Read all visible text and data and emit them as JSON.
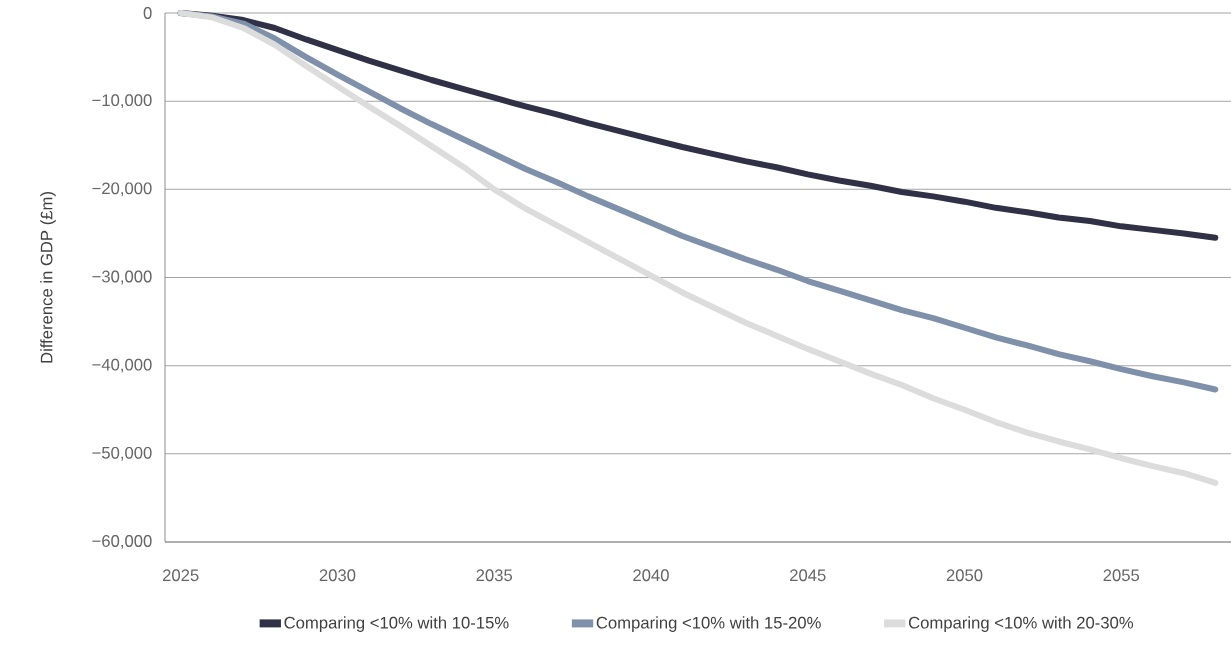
{
  "chart_data": {
    "type": "line",
    "ylabel": "Difference in GDP (£m)",
    "x": [
      2025,
      2026,
      2027,
      2028,
      2029,
      2030,
      2031,
      2032,
      2033,
      2034,
      2035,
      2036,
      2037,
      2038,
      2039,
      2040,
      2041,
      2042,
      2043,
      2044,
      2045,
      2046,
      2047,
      2048,
      2049,
      2050,
      2051,
      2052,
      2053,
      2054,
      2055,
      2056,
      2057,
      2058
    ],
    "series": [
      {
        "name": "Comparing <10% with 10-15%",
        "color": "#303047",
        "values": [
          0,
          -300,
          -800,
          -1700,
          -3000,
          -4200,
          -5400,
          -6500,
          -7600,
          -8600,
          -9600,
          -10600,
          -11500,
          -12500,
          -13400,
          -14300,
          -15200,
          -16000,
          -16800,
          -17500,
          -18300,
          -19000,
          -19600,
          -20300,
          -20800,
          -21400,
          -22100,
          -22600,
          -23200,
          -23600,
          -24200,
          -24600,
          -25000,
          -25500
        ]
      },
      {
        "name": "Comparing <10% with 15-20%",
        "color": "#7f90ab",
        "values": [
          0,
          -400,
          -1200,
          -2900,
          -5000,
          -7000,
          -8900,
          -10800,
          -12600,
          -14300,
          -16000,
          -17700,
          -19200,
          -20800,
          -22300,
          -23800,
          -25300,
          -26600,
          -27900,
          -29100,
          -30400,
          -31500,
          -32600,
          -33700,
          -34600,
          -35700,
          -36800,
          -37700,
          -38700,
          -39500,
          -40400,
          -41200,
          -41900,
          -42700
        ]
      },
      {
        "name": "Comparing <10% with 20-30%",
        "color": "#dcdcdc",
        "values": [
          0,
          -500,
          -1700,
          -3600,
          -6000,
          -8300,
          -10600,
          -12800,
          -15100,
          -17400,
          -20000,
          -22200,
          -24100,
          -26000,
          -27900,
          -29800,
          -31700,
          -33400,
          -35100,
          -36600,
          -38100,
          -39500,
          -40900,
          -42200,
          -43700,
          -45000,
          -46400,
          -47600,
          -48600,
          -49500,
          -50500,
          -51400,
          -52200,
          -53300
        ]
      }
    ],
    "xlim": [
      2024.5,
      2058.5
    ],
    "ylim": [
      -60000,
      0
    ],
    "xticks": [
      2025,
      2030,
      2035,
      2040,
      2045,
      2050,
      2055
    ],
    "yticks": [
      {
        "value": -60000,
        "label": "−60,000"
      },
      {
        "value": -50000,
        "label": "−50,000"
      },
      {
        "value": -40000,
        "label": "−40,000"
      },
      {
        "value": -30000,
        "label": "−30,000"
      },
      {
        "value": -20000,
        "label": "−20,000"
      },
      {
        "value": -10000,
        "label": "−10,000"
      },
      0
    ],
    "grid": "y",
    "legend": "bottom",
    "marker": "none",
    "line_style": "solid"
  }
}
